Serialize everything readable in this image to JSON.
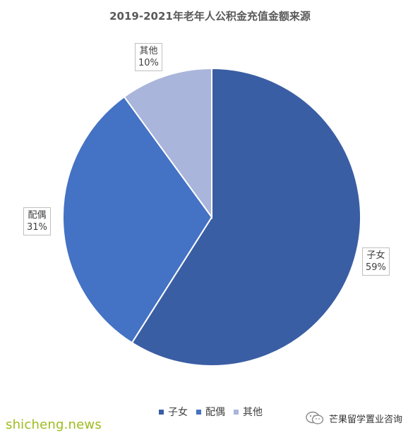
{
  "title": "2019-2021年老年人公积金充值金额来源",
  "chart_data": {
    "type": "pie",
    "title": "2019-2021年老年人公积金充值金额来源",
    "slices": [
      {
        "label": "子女",
        "value": 59,
        "value_label": "59%",
        "color": "#3a5ea4"
      },
      {
        "label": "配偶",
        "value": 31,
        "value_label": "31%",
        "color": "#4472c4"
      },
      {
        "label": "其他",
        "value": 10,
        "value_label": "10%",
        "color": "#a9b5db"
      }
    ],
    "legend_placement": "bottom"
  },
  "watermarks": {
    "left": "shicheng.news",
    "right": "芒果留学置业咨询",
    "right_icon": "wechat-icon"
  }
}
